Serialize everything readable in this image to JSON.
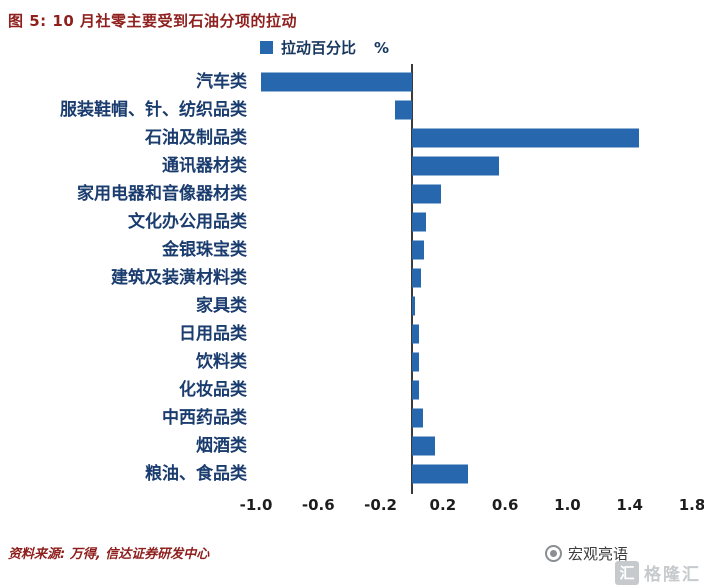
{
  "figure": {
    "title": "图 5: 10 月社零主要受到石油分项的拉动",
    "source_note": "资料来源: 万得, 信达证券研发中心",
    "brand_name": "宏观亮语",
    "watermark_text": "格隆汇"
  },
  "legend": {
    "label": "拉动百分比",
    "unit": "%"
  },
  "colors": {
    "bar_blue": "#2767AE",
    "title_red": "#8E1F1D",
    "label_navy": "#1A3C6E"
  },
  "chart_data": {
    "type": "bar",
    "orientation": "horizontal",
    "title": "图 5: 10 月社零主要受到石油分项的拉动",
    "legend_entries": [
      "拉动百分比 %"
    ],
    "legend_position": "top",
    "grid": false,
    "categories": [
      "汽车类",
      "服装鞋帽、针、纺织品类",
      "石油及制品类",
      "通讯器材类",
      "家用电器和音像器材类",
      "文化办公用品类",
      "金银珠宝类",
      "建筑及装潢材料类",
      "家具类",
      "日用品类",
      "饮料类",
      "化妆品类",
      "中西药品类",
      "烟酒类",
      "粮油、食品类"
    ],
    "values": [
      -0.97,
      -0.11,
      1.46,
      0.56,
      0.19,
      0.09,
      0.08,
      0.06,
      0.02,
      0.05,
      0.05,
      0.05,
      0.07,
      0.15,
      0.36
    ],
    "xlabel": "",
    "ylabel": "",
    "xlim": [
      -1.0,
      1.8
    ],
    "xticks": [
      "-1.0",
      "-0.6",
      "-0.2",
      "0.2",
      "0.6",
      "1.0",
      "1.4",
      "1.8"
    ]
  }
}
